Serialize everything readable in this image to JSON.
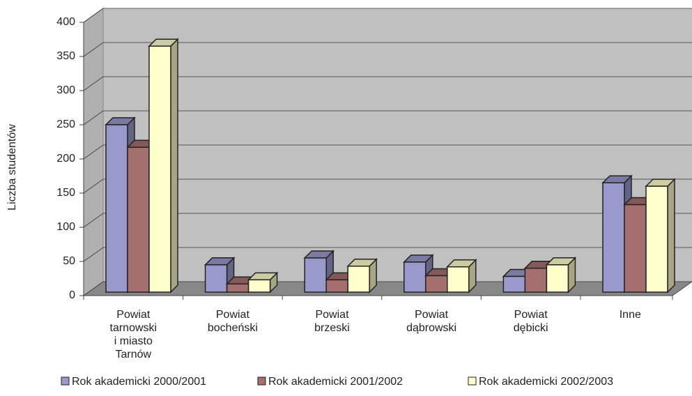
{
  "chart_data": {
    "type": "bar3d",
    "y_label": "Liczba studentów",
    "categories": [
      "Powiat\ntarnowski\ni miasto\nTarnów",
      "Powiat\nbocheński",
      "Powiat\nbrzeski",
      "Powiat\ndąbrowski",
      "Powiat\ndębicki",
      "Inne"
    ],
    "series": [
      {
        "name": "Rok akademicki 2000/2001",
        "color": "#9999cc",
        "values": [
          245,
          40,
          50,
          44,
          23,
          160
        ]
      },
      {
        "name": "Rok akademicki 2001/2002",
        "color": "#a66f6f",
        "values": [
          212,
          12,
          18,
          24,
          35,
          128
        ]
      },
      {
        "name": "Rok akademicki 2002/2003",
        "color": "#ffffcc",
        "values": [
          360,
          18,
          38,
          37,
          40,
          155
        ]
      }
    ],
    "ylim": [
      0,
      400
    ],
    "yticks": [
      0,
      50,
      100,
      150,
      200,
      250,
      300,
      350,
      400
    ],
    "grid": true,
    "legend": "bottom"
  }
}
